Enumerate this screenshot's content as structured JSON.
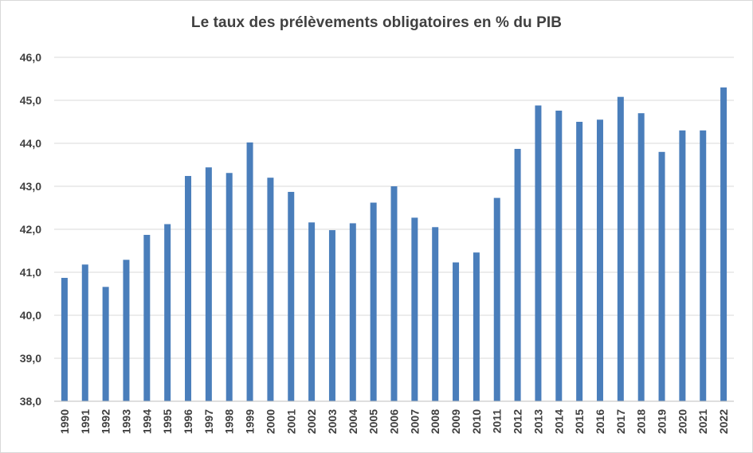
{
  "chart_data": {
    "type": "bar",
    "title": "Le taux des prélèvements obligatoires en % du PIB",
    "xlabel": "",
    "ylabel": "",
    "ylim": [
      38,
      46
    ],
    "ytick_labels": [
      "38,0",
      "39,0",
      "40,0",
      "41,0",
      "42,0",
      "43,0",
      "44,0",
      "45,0",
      "46,0"
    ],
    "categories": [
      "1990",
      "1991",
      "1992",
      "1993",
      "1994",
      "1995",
      "1996",
      "1997",
      "1998",
      "1999",
      "2000",
      "2001",
      "2002",
      "2003",
      "2004",
      "2005",
      "2006",
      "2007",
      "2008",
      "2009",
      "2010",
      "2011",
      "2012",
      "2013",
      "2014",
      "2015",
      "2016",
      "2017",
      "2018",
      "2019",
      "2020",
      "2021",
      "2022"
    ],
    "values": [
      40.87,
      41.18,
      40.66,
      41.29,
      41.87,
      42.12,
      43.24,
      43.44,
      43.31,
      44.02,
      43.2,
      42.87,
      42.16,
      41.98,
      42.14,
      42.62,
      43.0,
      42.27,
      42.05,
      41.23,
      41.46,
      42.73,
      43.87,
      44.88,
      44.76,
      44.5,
      44.55,
      45.08,
      44.7,
      43.8,
      44.3,
      44.3,
      45.3
    ],
    "bar_color": "#4a7ebb",
    "grid": true,
    "legend": "none"
  }
}
